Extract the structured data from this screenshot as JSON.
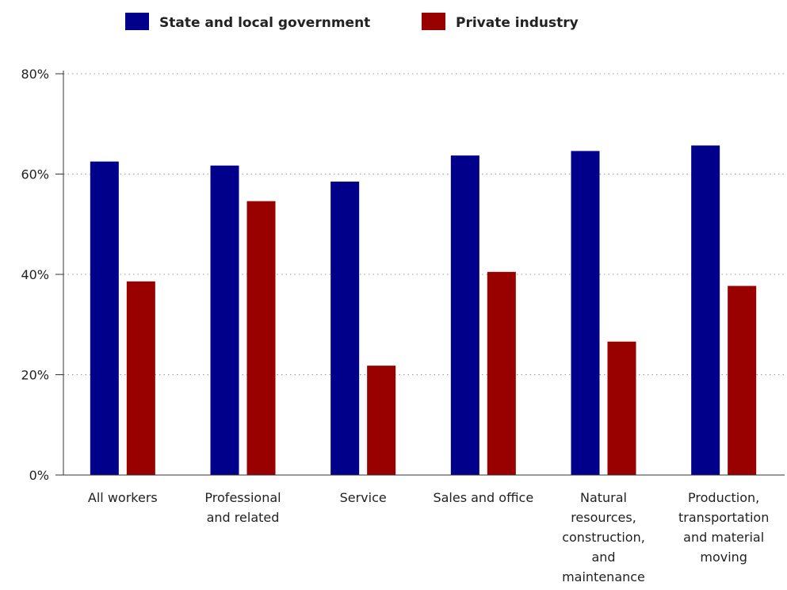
{
  "chart_data": {
    "type": "bar",
    "categories": [
      [
        "All workers"
      ],
      [
        "Professional",
        "and related"
      ],
      [
        "Service"
      ],
      [
        "Sales and office"
      ],
      [
        "Natural",
        "resources,",
        "construction,",
        "and",
        "maintenance"
      ],
      [
        "Production,",
        "transportation",
        "and material",
        "moving"
      ]
    ],
    "series": [
      {
        "name": "State and local government",
        "color": "#00008b",
        "values": [
          62.5,
          61.7,
          58.5,
          63.7,
          64.6,
          65.7
        ]
      },
      {
        "name": "Private industry",
        "color": "#990000",
        "values": [
          38.6,
          54.6,
          21.8,
          40.5,
          26.6,
          37.7
        ]
      }
    ],
    "ylim": [
      0,
      80
    ],
    "yticks": [
      0,
      20,
      40,
      60,
      80
    ],
    "ytick_labels": [
      "0%",
      "20%",
      "40%",
      "60%",
      "80%"
    ],
    "grid": true,
    "legend": "top",
    "title": "",
    "xlabel": "",
    "ylabel": ""
  }
}
